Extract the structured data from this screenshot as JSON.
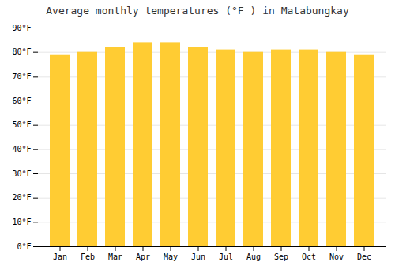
{
  "chart_data": {
    "type": "bar",
    "title": "Average monthly temperatures (°F ) in Matabungkay",
    "categories": [
      "Jan",
      "Feb",
      "Mar",
      "Apr",
      "May",
      "Jun",
      "Jul",
      "Aug",
      "Sep",
      "Oct",
      "Nov",
      "Dec"
    ],
    "values": [
      79,
      80,
      82,
      84,
      84,
      82,
      81,
      80,
      81,
      81,
      80,
      79
    ],
    "color": "#FFCC33",
    "ylim": [
      0,
      90
    ],
    "yticks": [
      {
        "value": 0,
        "label": "0°F"
      },
      {
        "value": 10,
        "label": "10°F"
      },
      {
        "value": 20,
        "label": "20°F"
      },
      {
        "value": 30,
        "label": "30°F"
      },
      {
        "value": 40,
        "label": "40°F"
      },
      {
        "value": 50,
        "label": "50°F"
      },
      {
        "value": 60,
        "label": "60°F"
      },
      {
        "value": 70,
        "label": "70°F"
      },
      {
        "value": 80,
        "label": "80°F"
      },
      {
        "value": 90,
        "label": "90°F"
      }
    ],
    "grid": true
  }
}
